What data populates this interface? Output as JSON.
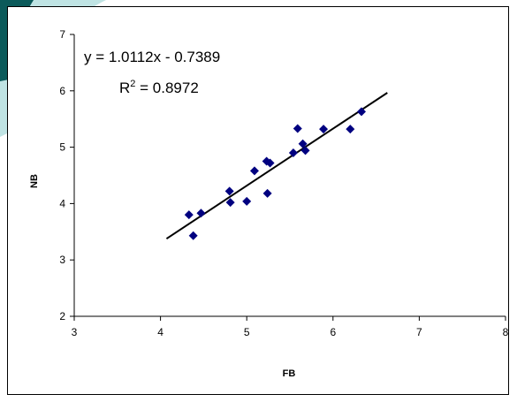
{
  "chart_data": {
    "type": "scatter",
    "title": "",
    "xlabel": "FB",
    "ylabel": "NB",
    "xlim": [
      3,
      8
    ],
    "ylim": [
      2,
      7
    ],
    "xticks": [
      "3",
      "4",
      "5",
      "6",
      "7",
      "8"
    ],
    "yticks": [
      "2",
      "3",
      "4",
      "5",
      "6",
      "7"
    ],
    "grid": false,
    "legend": "none",
    "marker": "diamond",
    "marker_color": "#000080",
    "trendline_color": "#000000",
    "trendline": {
      "slope": 1.0112,
      "intercept": -0.7389,
      "x_range": [
        4.07,
        6.63
      ]
    },
    "annotations": {
      "equation": "y = 1.0112x - 0.7389",
      "r_squared_prefix": "R",
      "r_squared_sup": "2",
      "r_squared_value": " = 0.8972"
    },
    "series": [
      {
        "x": [
          4.33,
          4.38,
          4.47,
          4.8,
          4.81,
          5.0,
          5.09,
          5.23,
          5.24,
          5.27,
          5.54,
          5.59,
          5.65,
          5.68,
          5.89,
          6.2,
          6.33
        ],
        "y": [
          3.8,
          3.43,
          3.83,
          4.22,
          4.02,
          4.04,
          4.58,
          4.75,
          4.18,
          4.72,
          4.9,
          5.33,
          5.06,
          4.94,
          5.32,
          5.32,
          5.63
        ]
      }
    ]
  },
  "background": {
    "page_color": "#ffffff",
    "accent_dark": "#0b5a5a",
    "accent_light": "#bfe3e3"
  }
}
